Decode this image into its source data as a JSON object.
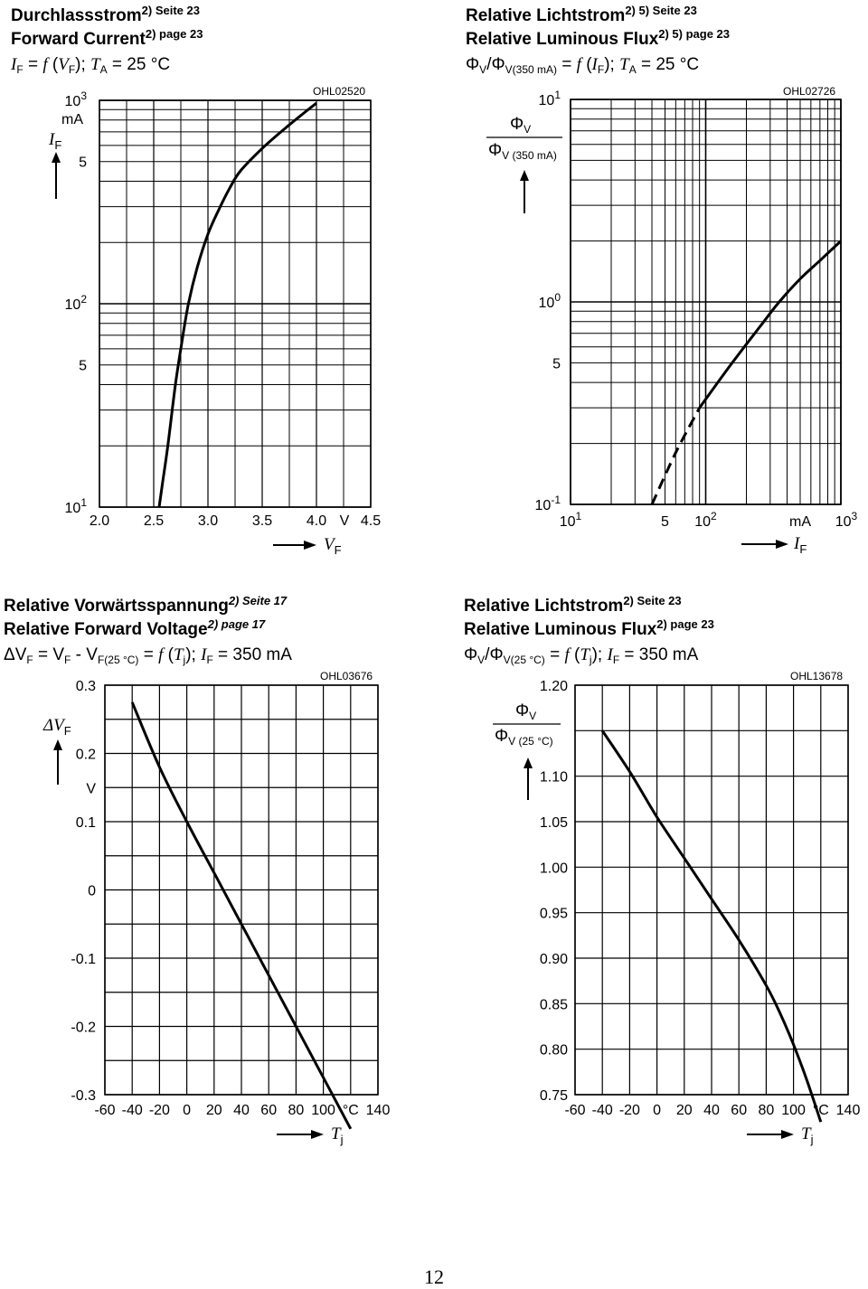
{
  "page_number": "12",
  "chart_data": [
    {
      "type": "line",
      "code": "OHL02520",
      "title_de": "Durchlassstrom",
      "title_de_ref": "2) Seite 23",
      "title_en": "Forward Current",
      "title_en_ref": "2) page 23",
      "subtitle": "I_F = f (V_F); T_A = 25 °C",
      "xlabel": "V_F",
      "ylabel": "I_F",
      "xunit": "V",
      "yunit": "mA",
      "xscale": "linear",
      "yscale": "log",
      "xlim": [
        2.0,
        4.5
      ],
      "ylim": [
        10,
        1000
      ],
      "x_ticks": [
        "2.0",
        "2.5",
        "3.0",
        "3.5",
        "4.0",
        "4.5"
      ],
      "y_ticks": [
        "10^1",
        "5",
        "10^2",
        "5",
        "10^3"
      ],
      "grid": true,
      "series": [
        {
          "style": "solid",
          "x": [
            2.55,
            2.58,
            2.63,
            2.7,
            2.76,
            2.82,
            2.9,
            3.0,
            3.1,
            3.2,
            3.3,
            3.5,
            3.7,
            3.9,
            4.0
          ],
          "y": [
            10,
            13,
            20,
            40,
            65,
            100,
            150,
            220,
            290,
            370,
            450,
            580,
            720,
            880,
            970
          ]
        }
      ]
    },
    {
      "type": "line",
      "code": "OHL02726",
      "title_de": "Relative Lichtstrom",
      "title_de_ref": "2) 5) Seite 23",
      "title_en": "Relative Luminous Flux",
      "title_en_ref": "2) 5) page 23",
      "subtitle": "Φ_V/Φ_V(350 mA) = f (I_F); T_A = 25 °C",
      "xlabel": "I_F",
      "ylabel_num": "Φ_V",
      "ylabel_den": "Φ_V (350 mA)",
      "xunit": "mA",
      "xscale": "log",
      "yscale": "log",
      "xlim": [
        10,
        1000
      ],
      "ylim": [
        0.1,
        10
      ],
      "x_ticks": [
        "10^1",
        "5",
        "10^2",
        "mA",
        "10^3"
      ],
      "y_ticks": [
        "10^-1",
        "5",
        "10^0",
        "10^1"
      ],
      "grid": true,
      "series": [
        {
          "style": "dashed",
          "x": [
            40,
            60,
            90
          ],
          "y": [
            0.1,
            0.18,
            0.3
          ]
        },
        {
          "style": "solid",
          "x": [
            90,
            150,
            250,
            350,
            500,
            700,
            1000
          ],
          "y": [
            0.3,
            0.48,
            0.75,
            1.0,
            1.3,
            1.6,
            2.0
          ]
        }
      ]
    },
    {
      "type": "line",
      "code": "OHL03676",
      "title_de": "Relative Vorwärtsspannung",
      "title_de_ref": "2) Seite 17",
      "title_en": "Relative Forward Voltage",
      "title_en_ref": "2) page 17",
      "subtitle": "ΔV_F = V_F - V_F(25 °C) = f (T_j); I_F = 350 mA",
      "xlabel": "T_j",
      "ylabel": "ΔV_F",
      "xunit": "°C",
      "yunit": "V",
      "xlim": [
        -60,
        140
      ],
      "ylim": [
        -0.3,
        0.3
      ],
      "x_ticks": [
        "-60",
        "-40",
        "-20",
        "0",
        "20",
        "40",
        "60",
        "80",
        "100",
        "°C",
        "140"
      ],
      "y_ticks": [
        "-0.3",
        "-0.2",
        "-0.1",
        "0",
        "0.1",
        "V",
        "0.2",
        "0.3"
      ],
      "grid": true,
      "series": [
        {
          "style": "solid",
          "x": [
            -40,
            -20,
            0,
            20,
            40,
            60,
            80,
            100,
            120
          ],
          "y": [
            0.275,
            0.18,
            0.1,
            0.025,
            -0.05,
            -0.125,
            -0.2,
            -0.275,
            -0.35
          ]
        }
      ]
    },
    {
      "type": "line",
      "code": "OHL13678",
      "title_de": "Relative Lichtstrom",
      "title_de_ref": "2) Seite 23",
      "title_en": "Relative Luminous Flux",
      "title_en_ref": "2) page 23",
      "subtitle": "Φ_V/Φ_V(25 °C) = f (T_j); I_F = 350 mA",
      "xlabel": "T_j",
      "ylabel_num": "Φ_V",
      "ylabel_den": "Φ_V (25 °C)",
      "xunit": "°C",
      "xlim": [
        -60,
        140
      ],
      "ylim": [
        0.75,
        1.2
      ],
      "x_ticks": [
        "-60",
        "-40",
        "-20",
        "0",
        "20",
        "40",
        "60",
        "80",
        "100",
        "°C",
        "140"
      ],
      "y_ticks": [
        "0.75",
        "0.80",
        "0.85",
        "0.90",
        "0.95",
        "1.00",
        "1.05",
        "1.10",
        "1.20"
      ],
      "grid": true,
      "series": [
        {
          "style": "solid",
          "x": [
            -40,
            -20,
            0,
            20,
            40,
            60,
            80,
            90,
            100,
            110,
            120
          ],
          "y": [
            1.15,
            1.105,
            1.055,
            1.01,
            0.965,
            0.92,
            0.87,
            0.84,
            0.805,
            0.765,
            0.72
          ]
        }
      ]
    }
  ]
}
